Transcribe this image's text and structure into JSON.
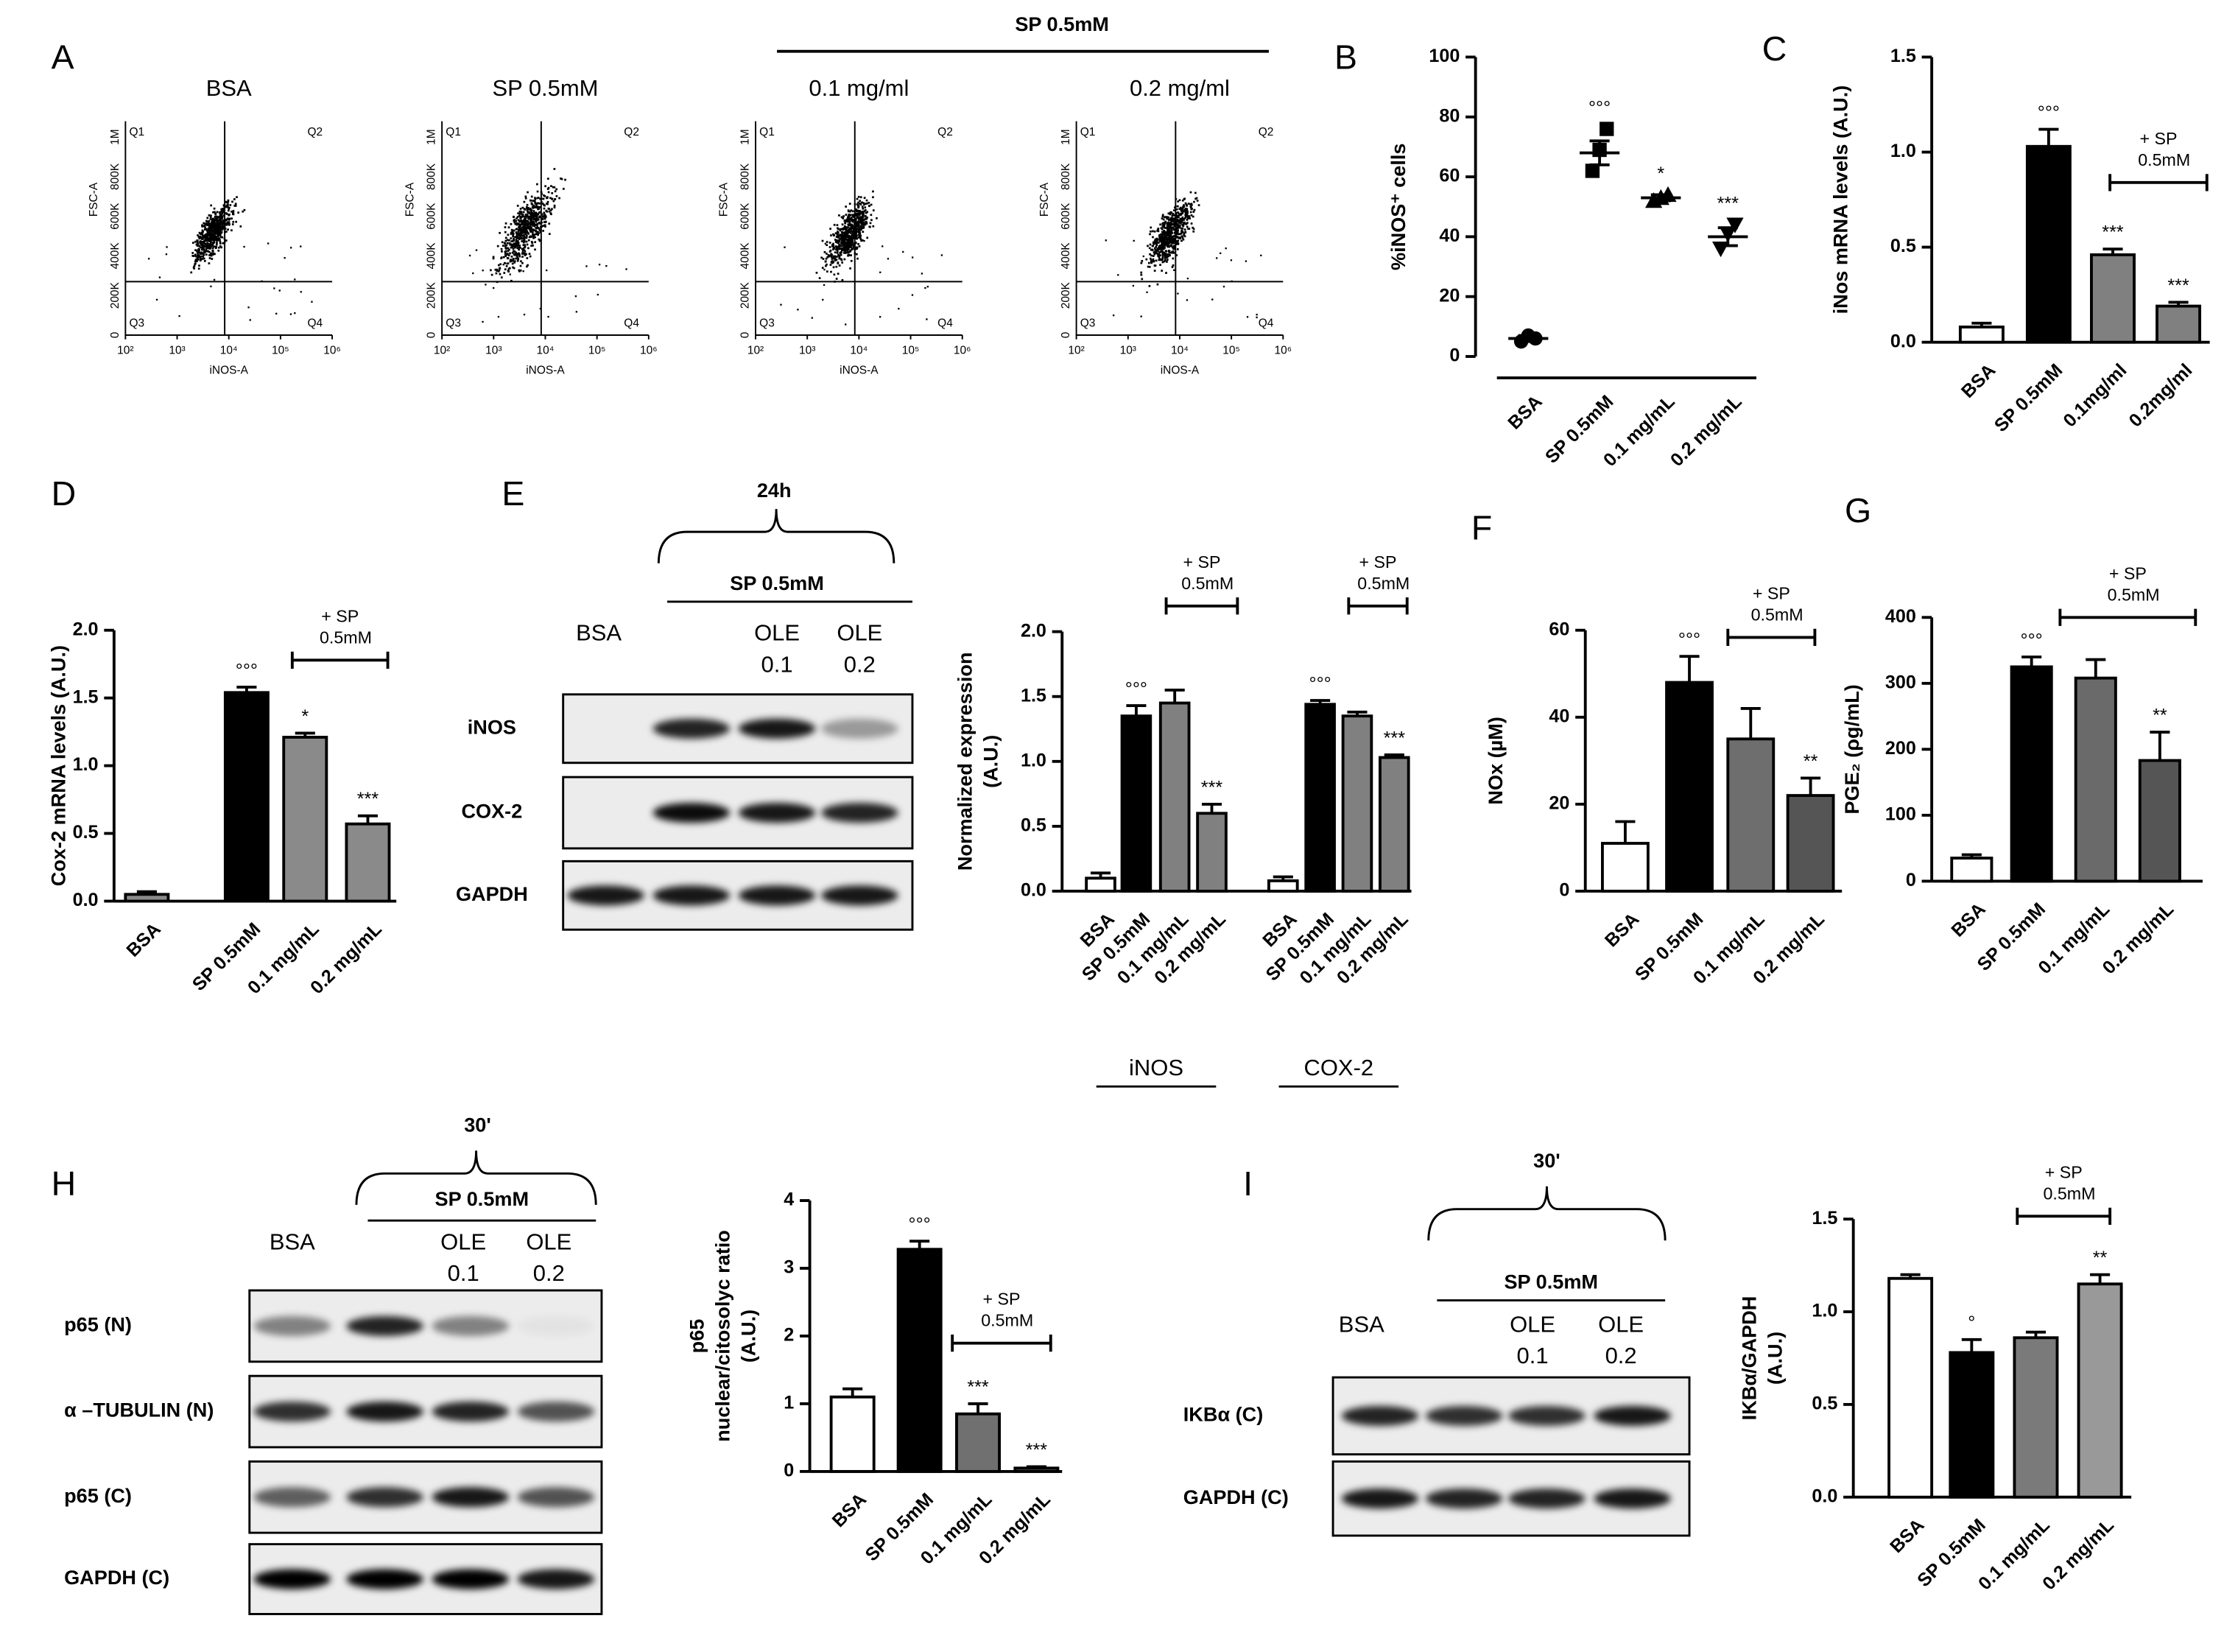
{
  "flow_cytometry": {
    "panel": "A",
    "header": "SP 0.5mM",
    "titles": [
      "BSA",
      "SP 0.5mM",
      "0.1 mg/ml",
      "0.2 mg/ml"
    ],
    "xlabel": "iNOS-A",
    "ylabel": "FSC-A",
    "xticks": [
      "10²",
      "10³",
      "10⁴",
      "10⁵",
      "10⁶"
    ],
    "yticks": [
      "0",
      "200K",
      "400K",
      "600K",
      "800K",
      "1M"
    ],
    "quadrants": [
      "Q1",
      "Q2",
      "Q3",
      "Q4"
    ]
  },
  "blots": [
    {
      "header": "24h",
      "treatment": "SP 0.5mM",
      "lanes": [
        [
          "BSA"
        ],
        [
          "OLE",
          "0.1"
        ],
        [
          "OLE",
          "0.2"
        ]
      ],
      "rows": [
        "iNOS",
        "COX-2",
        "GAPDH"
      ]
    },
    {
      "panel": "H",
      "header": "30'",
      "treatment": "SP 0.5mM",
      "lanes": [
        [
          "BSA"
        ],
        [
          "OLE",
          "0.1"
        ],
        [
          "OLE",
          "0.2"
        ]
      ],
      "rows": [
        "p65 (N)",
        "α –TUBULIN (N)",
        "p65 (C)",
        "GAPDH (C)"
      ]
    },
    {
      "panel": "I",
      "header": "30'",
      "treatment": "SP 0.5mM",
      "lanes": [
        [
          "BSA"
        ],
        [
          "OLE",
          "0.1"
        ],
        [
          "OLE",
          "0.2"
        ]
      ],
      "rows": [
        "IKBα (C)",
        "GAPDH (C)"
      ]
    }
  ],
  "chart_data": [
    {
      "type": "dot",
      "panel": "B",
      "ylabel": [
        "%iNOS⁺ cells"
      ],
      "categories": [
        "BSA",
        "SP 0.5mM",
        "0.1 mg/mL",
        "0.2 mg/mL"
      ],
      "markers": [
        "circle",
        "square",
        "triangle",
        "triangle-down"
      ],
      "points": [
        [
          5,
          7,
          6
        ],
        [
          62,
          69,
          76
        ],
        [
          52,
          53,
          54
        ],
        [
          36,
          41,
          44
        ]
      ],
      "values": [
        6,
        68,
        53,
        40
      ],
      "errors": [
        1,
        4,
        1,
        3
      ],
      "annotations": [
        null,
        "°°°",
        "*",
        "***"
      ],
      "ylim": [
        0,
        100
      ],
      "yticks": [
        0,
        20,
        40,
        60,
        80,
        100
      ]
    },
    {
      "type": "bar",
      "panel": "C",
      "ylabel": [
        "iNos mRNA levels (A.U.)"
      ],
      "categories": [
        "BSA",
        "SP 0.5mM",
        "0.1mg/ml",
        "0.2mg/ml"
      ],
      "colors": [
        "#ffffff",
        "#000000",
        "#808080",
        "#808080"
      ],
      "values": [
        0.08,
        1.03,
        0.46,
        0.19
      ],
      "errors": [
        0.02,
        0.09,
        0.03,
        0.02
      ],
      "annotations": [
        null,
        "°°°",
        "***",
        "***"
      ],
      "bracket_label": [
        "+ SP",
        "0.5mM"
      ],
      "ylim": [
        0,
        1.5
      ],
      "yticks": [
        {
          "value": 0,
          "label": "0.0"
        },
        0.5,
        {
          "value": 1,
          "label": "1.0"
        },
        1.5
      ]
    },
    {
      "type": "bar",
      "panel": "D",
      "ylabel": [
        "Cox-2 mRNA levels (A.U.)"
      ],
      "categories": [
        "BSA",
        "SP 0.5mM",
        "0.1 mg/mL",
        "0.2 mg/mL"
      ],
      "colors": [
        "#8a8a8a",
        "#000000",
        "#8a8a8a",
        "#8a8a8a"
      ],
      "values": [
        0.05,
        1.54,
        1.21,
        0.57
      ],
      "errors": [
        0.02,
        0.04,
        0.03,
        0.06
      ],
      "annotations": [
        null,
        "°°°",
        "*",
        "***"
      ],
      "bracket_label": [
        "+ SP",
        "0.5mM"
      ],
      "ylim": [
        0,
        2
      ],
      "yticks": [
        {
          "value": 0,
          "label": "0.0"
        },
        0.5,
        {
          "value": 1,
          "label": "1.0"
        },
        1.5,
        {
          "value": 2,
          "label": "2.0"
        }
      ]
    },
    {
      "type": "grouped-bar",
      "panel": "E",
      "ylabel": [
        "Normalized expression",
        "(A.U.)"
      ],
      "categories": [
        "BSA",
        "SP 0.5mM",
        "0.1 mg/mL",
        "0.2 mg/mL"
      ],
      "colors": [
        "#ffffff",
        "#000000",
        "#808080",
        "#808080"
      ],
      "series": [
        {
          "name": "iNOS",
          "values": [
            0.1,
            1.35,
            1.45,
            0.6
          ],
          "errors": [
            0.04,
            0.08,
            0.1,
            0.07
          ],
          "annotations": [
            null,
            "°°°",
            null,
            "***"
          ]
        },
        {
          "name": "COX-2",
          "values": [
            0.08,
            1.44,
            1.35,
            1.03
          ],
          "errors": [
            0.03,
            0.03,
            0.03,
            0.02
          ],
          "annotations": [
            null,
            "°°°",
            null,
            "***"
          ]
        }
      ],
      "bracket_label": [
        "+ SP",
        "0.5mM"
      ],
      "ylim": [
        0,
        2
      ],
      "yticks": [
        {
          "value": 0,
          "label": "0.0"
        },
        0.5,
        {
          "value": 1,
          "label": "1.0"
        },
        1.5,
        {
          "value": 2,
          "label": "2.0"
        }
      ]
    },
    {
      "type": "bar",
      "panel": "F",
      "ylabel": [
        "NOx (µM)"
      ],
      "categories": [
        "BSA",
        "SP 0.5mM",
        "0.1 mg/mL",
        "0.2 mg/mL"
      ],
      "colors": [
        "#ffffff",
        "#000000",
        "#6e6e6e",
        "#555555"
      ],
      "values": [
        11,
        48,
        35,
        22
      ],
      "errors": [
        5,
        6,
        7,
        4
      ],
      "annotations": [
        null,
        "°°°",
        null,
        "**"
      ],
      "bracket_label": [
        "+ SP",
        "0.5mM"
      ],
      "ylim": [
        0,
        60
      ],
      "yticks": [
        0,
        20,
        40,
        60
      ]
    },
    {
      "type": "bar",
      "panel": "G",
      "ylabel": [
        "PGE₂ (ρg/mL)"
      ],
      "categories": [
        "BSA",
        "SP 0.5mM",
        "0.1 mg/mL",
        "0.2 mg/mL"
      ],
      "colors": [
        "#ffffff",
        "#000000",
        "#6a6a6a",
        "#555555"
      ],
      "values": [
        35,
        325,
        308,
        183
      ],
      "errors": [
        5,
        15,
        28,
        43
      ],
      "annotations": [
        null,
        "°°°",
        null,
        "**"
      ],
      "bracket_label": [
        "+ SP",
        "0.5mM"
      ],
      "ylim": [
        0,
        400
      ],
      "yticks": [
        0,
        100,
        200,
        300,
        400
      ]
    },
    {
      "type": "bar",
      "ylabel": [
        "p65",
        "nuclear/citosolyc ratio",
        "(A.U.)"
      ],
      "categories": [
        "BSA",
        "SP 0.5mM",
        "0.1 mg/mL",
        "0.2 mg/mL"
      ],
      "colors": [
        "#ffffff",
        "#000000",
        "#707070",
        "#555555"
      ],
      "values": [
        1.1,
        3.28,
        0.85,
        0.05
      ],
      "errors": [
        0.12,
        0.12,
        0.15,
        0.02
      ],
      "annotations": [
        null,
        "°°°",
        "***",
        "***"
      ],
      "bracket_label": [
        "+ SP",
        "0.5mM"
      ],
      "ylim": [
        0,
        4
      ],
      "yticks": [
        0,
        1,
        2,
        3,
        4
      ]
    },
    {
      "type": "bar",
      "ylabel": [
        "IKBα/GAPDH",
        "(A.U.)"
      ],
      "categories": [
        "BSA",
        "SP 0.5mM",
        "0.1 mg/mL",
        "0.2 mg/mL"
      ],
      "colors": [
        "#ffffff",
        "#000000",
        "#7a7a7a",
        "#999999"
      ],
      "values": [
        1.18,
        0.78,
        0.86,
        1.15
      ],
      "errors": [
        0.02,
        0.07,
        0.03,
        0.05
      ],
      "annotations": [
        null,
        "°",
        null,
        "**"
      ],
      "bracket_label": [
        "+ SP",
        "0.5mM"
      ],
      "ylim": [
        0,
        1.5
      ],
      "yticks": [
        {
          "value": 0,
          "label": "0.0"
        },
        0.5,
        {
          "value": 1,
          "label": "1.0"
        },
        1.5
      ]
    }
  ]
}
